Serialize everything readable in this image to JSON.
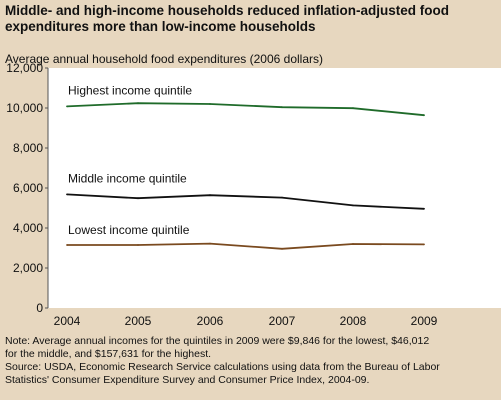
{
  "title_lines": [
    "Middle- and high-income households reduced inflation-adjusted food",
    "expenditures more than low-income households"
  ],
  "note_lines": [
    "Note: Average annual incomes for the quintiles in 2009 were $9,846 for the lowest, $46,012",
    "for the middle, and $157,631 for the highest.",
    "Source: USDA, Economic Research Service calculations using data from the Bureau of Labor",
    "Statistics' Consumer Expenditure Survey and Consumer Price Index, 2004-09."
  ],
  "chart_data": {
    "type": "line",
    "title": "Middle- and high-income households reduced inflation-adjusted food expenditures more than low-income households",
    "ylabel": "Average annual household food expenditures (2006 dollars)",
    "xlabel": "",
    "x": [
      "2004",
      "2005",
      "2006",
      "2007",
      "2008",
      "2009"
    ],
    "ylim": [
      0,
      12000
    ],
    "yticks": [
      "0",
      "2,000",
      "4,000",
      "6,000",
      "8,000",
      "10,000",
      "12,000"
    ],
    "grid": false,
    "series": [
      {
        "name": "Highest income quintile",
        "color": "#1f6b2a",
        "values": [
          10080,
          10240,
          10200,
          10040,
          9990,
          9640
        ]
      },
      {
        "name": "Middle income quintile",
        "color": "#111111",
        "values": [
          5680,
          5490,
          5640,
          5520,
          5130,
          4960
        ]
      },
      {
        "name": "Lowest income quintile",
        "color": "#7a4a1f",
        "values": [
          3150,
          3150,
          3220,
          2960,
          3200,
          3180
        ]
      }
    ]
  }
}
